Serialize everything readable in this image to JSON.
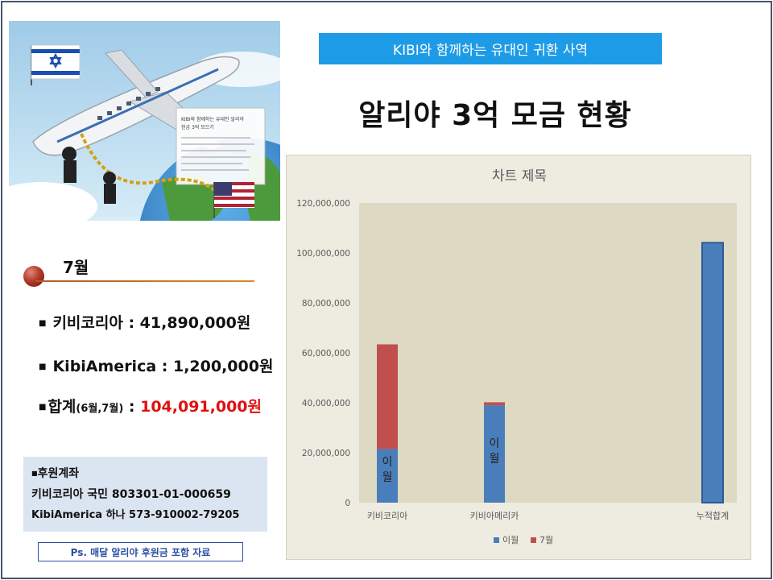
{
  "illustration": {
    "flag_left": "israel-flag",
    "flag_right": "usa-flag",
    "brochure_lines": [
      "KIBI와 함께하는 유대인 알리야",
      "헌금 3억 모으기"
    ]
  },
  "banner": {
    "text": "KIBI와 함께하는 유대인 귀환 사역"
  },
  "title": "알리야 3억 모금 현황",
  "month": "7월",
  "stats": {
    "korea": "키비코리아 : 41,890,000원",
    "america": "KibiAmerica : 1,200,000원",
    "total_label": "합계",
    "total_period": "(6월,7월)",
    "total_sep": " : ",
    "total_value": "104,091,000원"
  },
  "account": {
    "heading": "후원계좌",
    "korea": "키비코리아 국민 803301-01-000659",
    "america": "KibiAmerica 하나 573-910002-79205"
  },
  "note": "Ps. 매달 알리야 후원금 포함 자료",
  "colors": {
    "banner": "#1e9be6",
    "series_prev": "#4a7ebb",
    "series_jul": "#c0504d",
    "highlight": "#e01010",
    "chart_bg": "#eeece1",
    "plot_bg": "#ddd9c3"
  },
  "chart_data": {
    "type": "bar",
    "stacked": true,
    "title": "차트 제목",
    "categories": [
      "키비코리아",
      "키비아메리카",
      "누적합계"
    ],
    "series": [
      {
        "name": "이월",
        "values": [
          21500000,
          39000000,
          104091000
        ]
      },
      {
        "name": "7월",
        "values": [
          41890000,
          1200000,
          0
        ]
      }
    ],
    "data_labels": [
      "이\n월",
      "이\n월",
      ""
    ],
    "ylim": [
      0,
      120000000
    ],
    "yticks": [
      "0",
      "20,000,000",
      "40,000,000",
      "60,000,000",
      "80,000,000",
      "100,000,000",
      "120,000,000"
    ],
    "legend": "bottom",
    "grid": false
  }
}
